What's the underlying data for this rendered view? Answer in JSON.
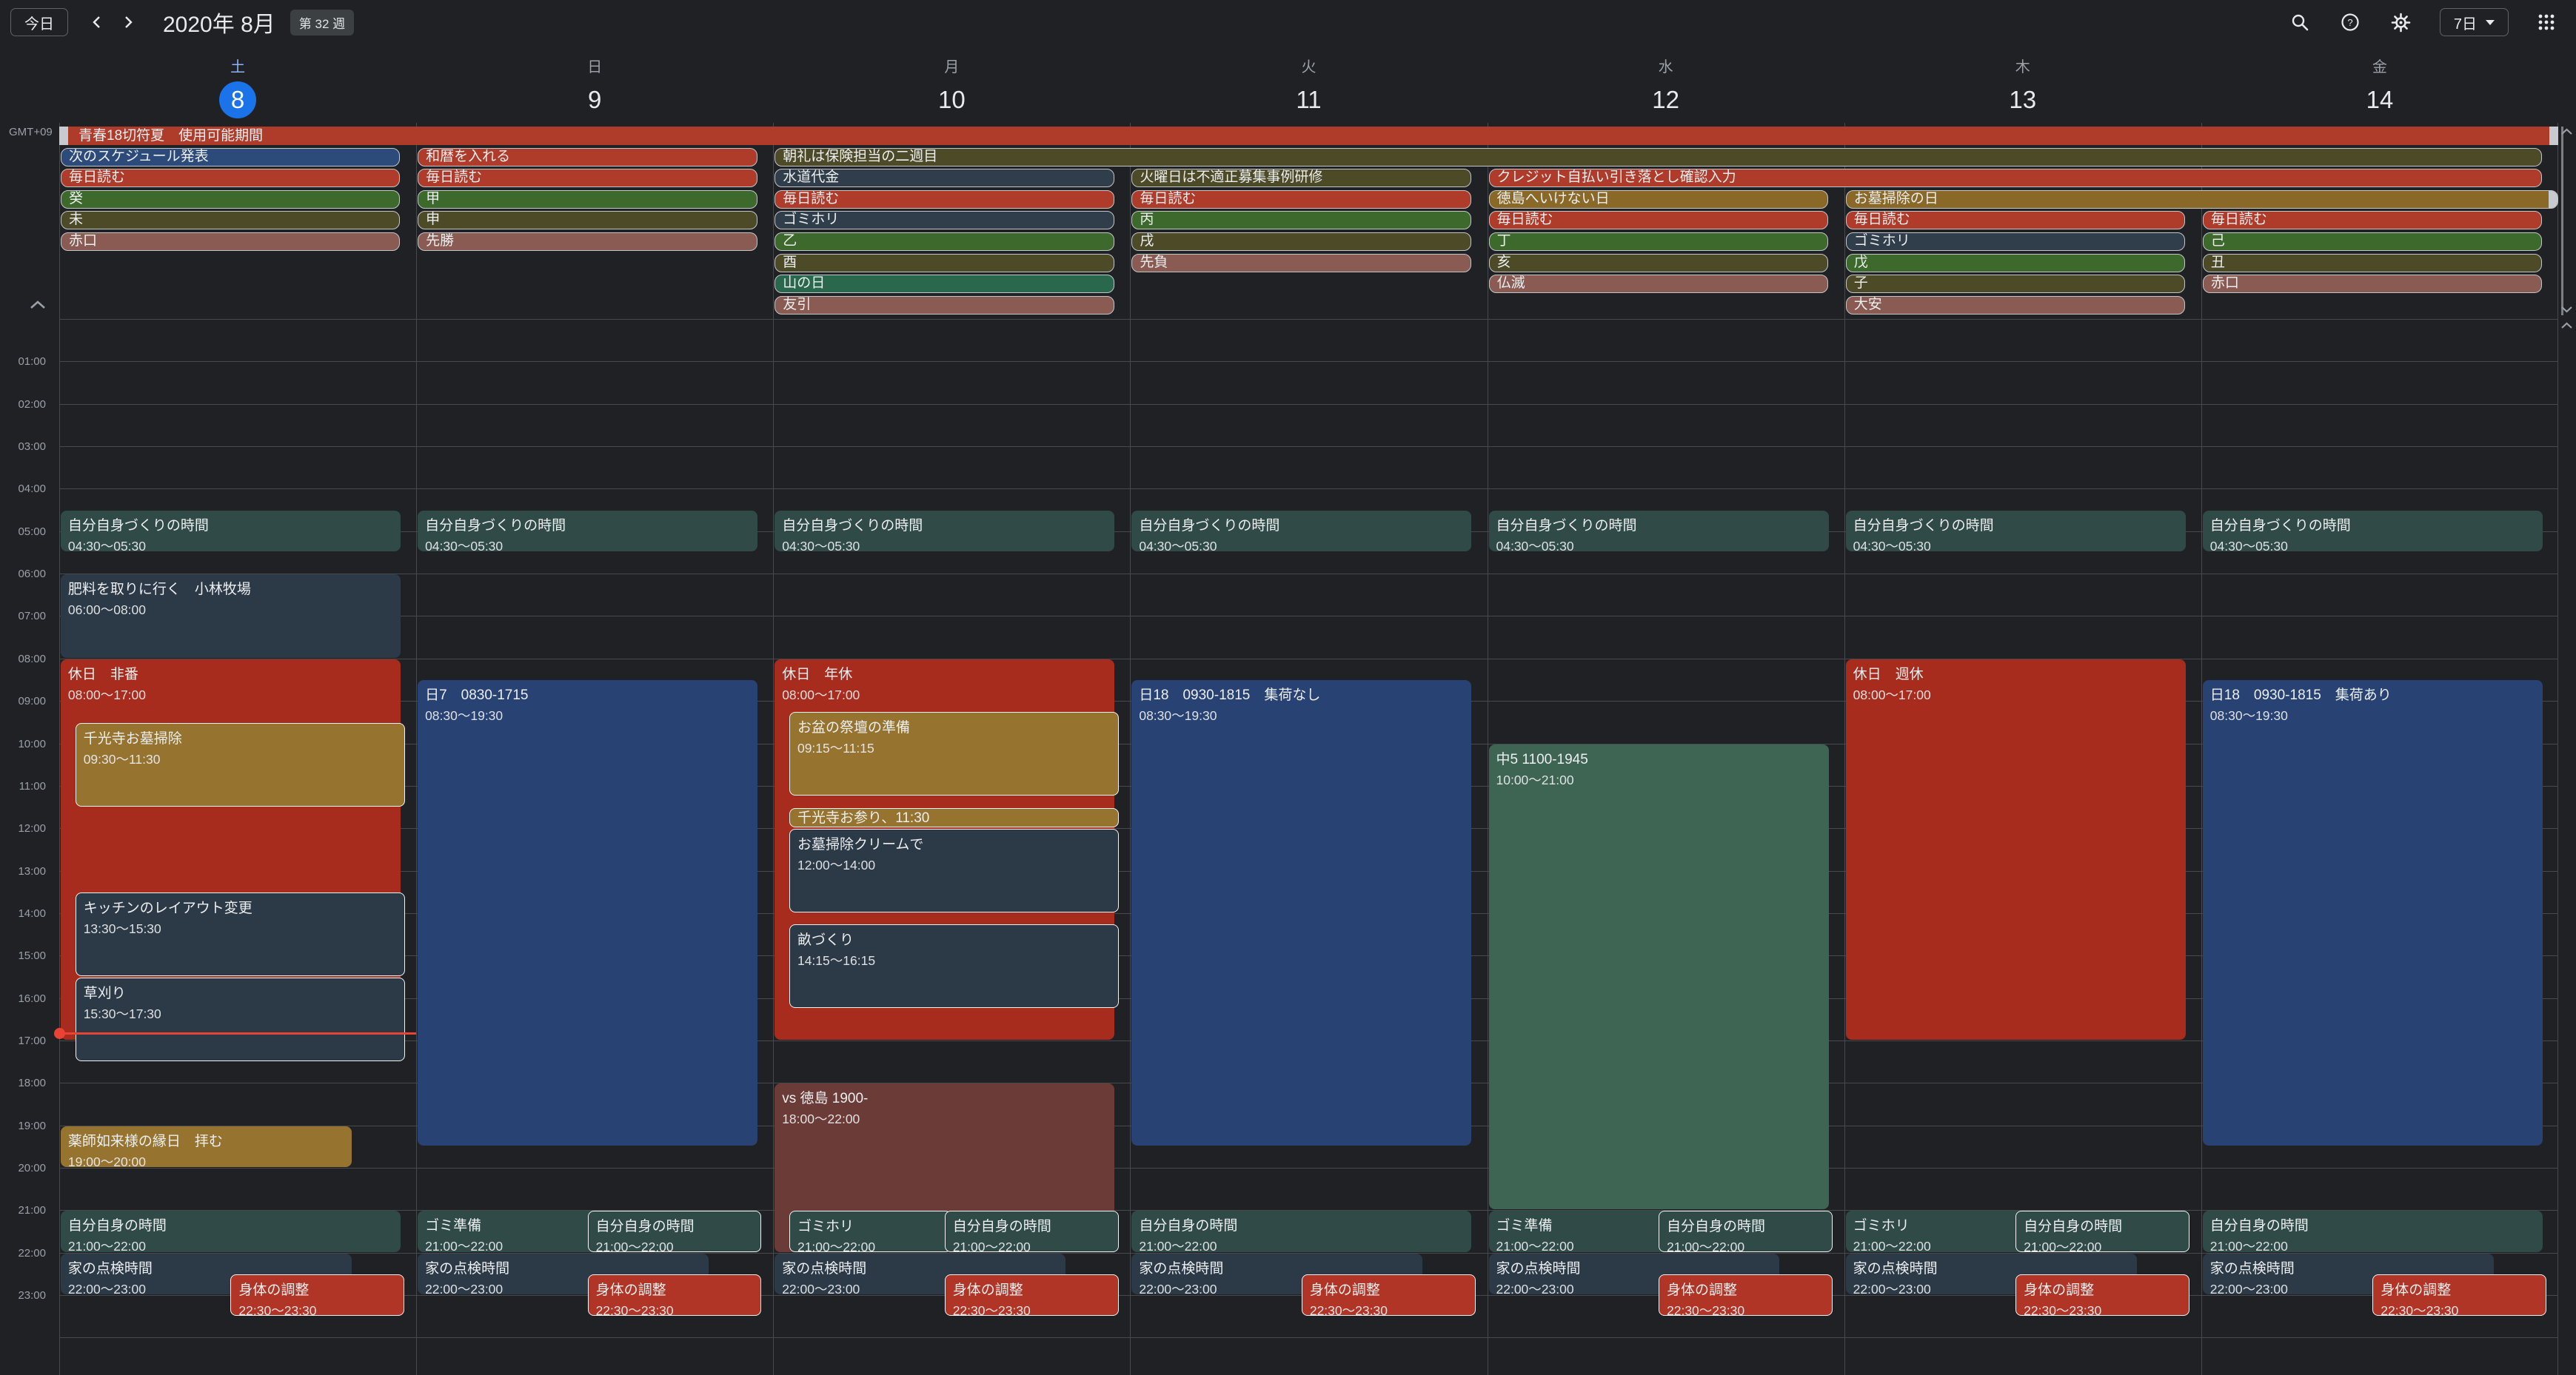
{
  "header": {
    "today_button": "今日",
    "title": "2020年 8月",
    "week_badge": "第 32 週",
    "view_selector": "7日"
  },
  "timezone_label": "GMT+09",
  "days": [
    {
      "weekday": "土",
      "date": "8",
      "today": true
    },
    {
      "weekday": "日",
      "date": "9",
      "today": false
    },
    {
      "weekday": "月",
      "date": "10",
      "today": false
    },
    {
      "weekday": "火",
      "date": "11",
      "today": false
    },
    {
      "weekday": "水",
      "date": "12",
      "today": false
    },
    {
      "weekday": "木",
      "date": "13",
      "today": false
    },
    {
      "weekday": "金",
      "date": "14",
      "today": false
    }
  ],
  "hours": [
    "01:00",
    "02:00",
    "03:00",
    "04:00",
    "05:00",
    "06:00",
    "07:00",
    "08:00",
    "09:00",
    "10:00",
    "11:00",
    "12:00",
    "13:00",
    "14:00",
    "15:00",
    "16:00",
    "17:00",
    "18:00",
    "19:00",
    "20:00",
    "21:00",
    "22:00",
    "23:00"
  ],
  "palette": {
    "red_chip": "#af3b2b",
    "red_block": "#a82c1e",
    "red_small": "#b03526",
    "blue_chip": "#2d4b7a",
    "blue_block": "#284274",
    "green_chip": "#3d692c",
    "sage_chip": "#2a684d",
    "sage_block": "#3e6553",
    "olive": "#4d4a28",
    "gold": "#96742f",
    "gold_dark": "#8a6928",
    "brown": "#8a5b52",
    "maroon": "#6b3b38",
    "slate": "#2c3a48",
    "slate_chip": "#2f3e4a",
    "teal": "#2f4a47",
    "accent": "#1a73e8",
    "now": "#ea4335"
  },
  "all_day": [
    {
      "row": 0,
      "day": 0,
      "span": 7,
      "label": "青春18切符夏　使用可能期間",
      "color": "red_chip",
      "cap_left": true,
      "cap_right": true,
      "flush": true
    },
    {
      "row": 1,
      "day": 0,
      "span": 1,
      "label": "次のスケジュール発表",
      "color": "blue_chip"
    },
    {
      "row": 1,
      "day": 1,
      "span": 1,
      "label": "和暦を入れる",
      "color": "red_chip"
    },
    {
      "row": 1,
      "day": 2,
      "span": 5,
      "label": "朝礼は保険担当の二週目",
      "color": "olive"
    },
    {
      "row": 2,
      "day": 0,
      "span": 1,
      "label": "毎日読む",
      "color": "red_chip"
    },
    {
      "row": 2,
      "day": 1,
      "span": 1,
      "label": "毎日読む",
      "color": "red_chip"
    },
    {
      "row": 2,
      "day": 2,
      "span": 1,
      "label": "水道代金",
      "color": "slate_chip"
    },
    {
      "row": 2,
      "day": 3,
      "span": 1,
      "label": "火曜日は不適正募集事例研修",
      "color": "olive"
    },
    {
      "row": 2,
      "day": 4,
      "span": 3,
      "label": "クレジット自払い引き落とし確認入力",
      "color": "red_chip"
    },
    {
      "row": 3,
      "day": 0,
      "span": 1,
      "label": "癸",
      "color": "green_chip"
    },
    {
      "row": 3,
      "day": 1,
      "span": 1,
      "label": "甲",
      "color": "green_chip"
    },
    {
      "row": 3,
      "day": 2,
      "span": 1,
      "label": "毎日読む",
      "color": "red_chip"
    },
    {
      "row": 3,
      "day": 3,
      "span": 1,
      "label": "毎日読む",
      "color": "red_chip"
    },
    {
      "row": 3,
      "day": 4,
      "span": 1,
      "label": "徳島へいけない日",
      "color": "gold_dark"
    },
    {
      "row": 3,
      "day": 5,
      "span": 2,
      "label": "お墓掃除の日",
      "color": "gold_dark",
      "cap_right": true
    },
    {
      "row": 4,
      "day": 0,
      "span": 1,
      "label": "未",
      "color": "olive"
    },
    {
      "row": 4,
      "day": 1,
      "span": 1,
      "label": "申",
      "color": "olive"
    },
    {
      "row": 4,
      "day": 2,
      "span": 1,
      "label": "ゴミホリ",
      "color": "slate_chip"
    },
    {
      "row": 4,
      "day": 3,
      "span": 1,
      "label": "丙",
      "color": "green_chip"
    },
    {
      "row": 4,
      "day": 4,
      "span": 1,
      "label": "毎日読む",
      "color": "red_chip"
    },
    {
      "row": 4,
      "day": 5,
      "span": 1,
      "label": "毎日読む",
      "color": "red_chip"
    },
    {
      "row": 4,
      "day": 6,
      "span": 1,
      "label": "毎日読む",
      "color": "red_chip"
    },
    {
      "row": 5,
      "day": 0,
      "span": 1,
      "label": "赤口",
      "color": "brown"
    },
    {
      "row": 5,
      "day": 1,
      "span": 1,
      "label": "先勝",
      "color": "brown"
    },
    {
      "row": 5,
      "day": 2,
      "span": 1,
      "label": "乙",
      "color": "green_chip"
    },
    {
      "row": 5,
      "day": 3,
      "span": 1,
      "label": "戌",
      "color": "olive"
    },
    {
      "row": 5,
      "day": 4,
      "span": 1,
      "label": "丁",
      "color": "green_chip"
    },
    {
      "row": 5,
      "day": 5,
      "span": 1,
      "label": "ゴミホリ",
      "color": "slate_chip"
    },
    {
      "row": 5,
      "day": 6,
      "span": 1,
      "label": "己",
      "color": "green_chip"
    },
    {
      "row": 6,
      "day": 2,
      "span": 1,
      "label": "酉",
      "color": "olive"
    },
    {
      "row": 6,
      "day": 3,
      "span": 1,
      "label": "先負",
      "color": "brown"
    },
    {
      "row": 6,
      "day": 4,
      "span": 1,
      "label": "亥",
      "color": "olive"
    },
    {
      "row": 6,
      "day": 5,
      "span": 1,
      "label": "戊",
      "color": "green_chip"
    },
    {
      "row": 6,
      "day": 6,
      "span": 1,
      "label": "丑",
      "color": "olive"
    },
    {
      "row": 7,
      "day": 2,
      "span": 1,
      "label": "山の日",
      "color": "sage_chip"
    },
    {
      "row": 7,
      "day": 4,
      "span": 1,
      "label": "仏滅",
      "color": "brown"
    },
    {
      "row": 7,
      "day": 5,
      "span": 1,
      "label": "子",
      "color": "olive"
    },
    {
      "row": 7,
      "day": 6,
      "span": 1,
      "label": "赤口",
      "color": "brown"
    },
    {
      "row": 8,
      "day": 2,
      "span": 1,
      "label": "友引",
      "color": "brown"
    },
    {
      "row": 8,
      "day": 5,
      "span": 1,
      "label": "大安",
      "color": "brown"
    }
  ],
  "events": [
    {
      "day": 0,
      "start": "04:30",
      "end": "05:30",
      "title": "自分自身づくりの時間",
      "time": "04:30～05:30",
      "color": "teal",
      "lane": "full"
    },
    {
      "day": 0,
      "start": "06:00",
      "end": "08:00",
      "title": "肥料を取りに行く　小林牧場",
      "time": "06:00～08:00",
      "color": "slate",
      "lane": "full"
    },
    {
      "day": 0,
      "start": "08:00",
      "end": "17:00",
      "title": "休日　非番",
      "time": "08:00～17:00",
      "color": "red_block",
      "lane": "full"
    },
    {
      "day": 0,
      "start": "09:30",
      "end": "11:30",
      "title": "千光寺お墓掃除",
      "time": "09:30～11:30",
      "color": "gold",
      "lane": "inset",
      "bordered": true
    },
    {
      "day": 0,
      "start": "13:30",
      "end": "15:30",
      "title": "キッチンのレイアウト変更",
      "time": "13:30～15:30",
      "color": "slate",
      "lane": "inset",
      "bordered": true
    },
    {
      "day": 0,
      "start": "15:30",
      "end": "17:30",
      "title": "草刈り",
      "time": "15:30～17:30",
      "color": "slate",
      "lane": "inset",
      "bordered": true
    },
    {
      "day": 0,
      "start": "19:00",
      "end": "20:00",
      "title": "薬師如来様の縁日　拝む",
      "time": "19:00～20:00",
      "color": "gold",
      "lane": "wide"
    },
    {
      "day": 0,
      "start": "21:00",
      "end": "22:00",
      "title": "自分自身の時間",
      "time": "21:00～22:00",
      "color": "teal",
      "lane": "full"
    },
    {
      "day": 0,
      "start": "22:00",
      "end": "23:00",
      "title": "家の点検時間",
      "time": "22:00～23:00",
      "color": "slate",
      "lane": "wide"
    },
    {
      "day": 0,
      "start": "22:30",
      "end": "23:30",
      "title": "身体の調整",
      "time": "22:30～23:30",
      "color": "red_small",
      "lane": "right",
      "bordered": true
    },
    {
      "day": 1,
      "start": "04:30",
      "end": "05:30",
      "title": "自分自身づくりの時間",
      "time": "04:30～05:30",
      "color": "teal",
      "lane": "full"
    },
    {
      "day": 1,
      "start": "08:30",
      "end": "19:30",
      "title": "日7　0830-1715",
      "time": "08:30～19:30",
      "color": "blue_block",
      "lane": "full"
    },
    {
      "day": 1,
      "start": "21:00",
      "end": "22:00",
      "title": "ゴミ準備",
      "time": "21:00～22:00",
      "color": "teal",
      "lane": "wide"
    },
    {
      "day": 1,
      "start": "21:00",
      "end": "22:00",
      "title": "自分自身の時間",
      "time": "21:00～22:00",
      "color": "teal",
      "lane": "right",
      "bordered": true
    },
    {
      "day": 1,
      "start": "22:00",
      "end": "23:00",
      "title": "家の点検時間",
      "time": "22:00～23:00",
      "color": "slate",
      "lane": "wide"
    },
    {
      "day": 1,
      "start": "22:30",
      "end": "23:30",
      "title": "身体の調整",
      "time": "22:30～23:30",
      "color": "red_small",
      "lane": "right",
      "bordered": true
    },
    {
      "day": 2,
      "start": "04:30",
      "end": "05:30",
      "title": "自分自身づくりの時間",
      "time": "04:30～05:30",
      "color": "teal",
      "lane": "full"
    },
    {
      "day": 2,
      "start": "08:00",
      "end": "17:00",
      "title": "休日　年休",
      "time": "08:00～17:00",
      "color": "red_block",
      "lane": "full"
    },
    {
      "day": 2,
      "start": "09:15",
      "end": "11:15",
      "title": "お盆の祭壇の準備",
      "time": "09:15～11:15",
      "color": "gold",
      "lane": "inset",
      "bordered": true
    },
    {
      "day": 2,
      "start": "11:30",
      "end": "12:00",
      "title": "千光寺お参り、11:30",
      "time": "",
      "color": "gold",
      "lane": "inset",
      "bordered": true
    },
    {
      "day": 2,
      "start": "12:00",
      "end": "14:00",
      "title": "お墓掃除クリームで",
      "time": "12:00～14:00",
      "color": "slate",
      "lane": "inset",
      "bordered": true
    },
    {
      "day": 2,
      "start": "14:15",
      "end": "16:15",
      "title": "畝づくり",
      "time": "14:15～16:15",
      "color": "slate",
      "lane": "inset",
      "bordered": true
    },
    {
      "day": 2,
      "start": "18:00",
      "end": "22:00",
      "title": "vs 徳島 1900-",
      "time": "18:00～22:00",
      "color": "maroon",
      "lane": "full"
    },
    {
      "day": 2,
      "start": "21:00",
      "end": "22:00",
      "title": "ゴミホリ",
      "time": "21:00～22:00",
      "color": "teal",
      "lane": "left",
      "bordered": true
    },
    {
      "day": 2,
      "start": "21:00",
      "end": "22:00",
      "title": "自分自身の時間",
      "time": "21:00～22:00",
      "color": "teal",
      "lane": "right",
      "bordered": true
    },
    {
      "day": 2,
      "start": "22:00",
      "end": "23:00",
      "title": "家の点検時間",
      "time": "22:00～23:00",
      "color": "slate",
      "lane": "wide"
    },
    {
      "day": 2,
      "start": "22:30",
      "end": "23:30",
      "title": "身体の調整",
      "time": "22:30～23:30",
      "color": "red_small",
      "lane": "right",
      "bordered": true
    },
    {
      "day": 3,
      "start": "04:30",
      "end": "05:30",
      "title": "自分自身づくりの時間",
      "time": "04:30～05:30",
      "color": "teal",
      "lane": "full"
    },
    {
      "day": 3,
      "start": "08:30",
      "end": "19:30",
      "title": "日18　0930-1815　集荷なし",
      "time": "08:30～19:30",
      "color": "blue_block",
      "lane": "full"
    },
    {
      "day": 3,
      "start": "21:00",
      "end": "22:00",
      "title": "自分自身の時間",
      "time": "21:00～22:00",
      "color": "teal",
      "lane": "full"
    },
    {
      "day": 3,
      "start": "22:00",
      "end": "23:00",
      "title": "家の点検時間",
      "time": "22:00～23:00",
      "color": "slate",
      "lane": "wide"
    },
    {
      "day": 3,
      "start": "22:30",
      "end": "23:30",
      "title": "身体の調整",
      "time": "22:30～23:30",
      "color": "red_small",
      "lane": "right",
      "bordered": true
    },
    {
      "day": 4,
      "start": "04:30",
      "end": "05:30",
      "title": "自分自身づくりの時間",
      "time": "04:30～05:30",
      "color": "teal",
      "lane": "full"
    },
    {
      "day": 4,
      "start": "10:00",
      "end": "21:00",
      "title": "中5 1100-1945",
      "time": "10:00～21:00",
      "color": "sage_block",
      "lane": "full"
    },
    {
      "day": 4,
      "start": "21:00",
      "end": "22:00",
      "title": "ゴミ準備",
      "time": "21:00～22:00",
      "color": "teal",
      "lane": "wide"
    },
    {
      "day": 4,
      "start": "21:00",
      "end": "22:00",
      "title": "自分自身の時間",
      "time": "21:00～22:00",
      "color": "teal",
      "lane": "right",
      "bordered": true
    },
    {
      "day": 4,
      "start": "22:00",
      "end": "23:00",
      "title": "家の点検時間",
      "time": "22:00～23:00",
      "color": "slate",
      "lane": "wide"
    },
    {
      "day": 4,
      "start": "22:30",
      "end": "23:30",
      "title": "身体の調整",
      "time": "22:30～23:30",
      "color": "red_small",
      "lane": "right",
      "bordered": true
    },
    {
      "day": 5,
      "start": "04:30",
      "end": "05:30",
      "title": "自分自身づくりの時間",
      "time": "04:30～05:30",
      "color": "teal",
      "lane": "full"
    },
    {
      "day": 5,
      "start": "08:00",
      "end": "17:00",
      "title": "休日　週休",
      "time": "08:00～17:00",
      "color": "red_block",
      "lane": "full"
    },
    {
      "day": 5,
      "start": "21:00",
      "end": "22:00",
      "title": "ゴミホリ",
      "time": "21:00～22:00",
      "color": "teal",
      "lane": "wide"
    },
    {
      "day": 5,
      "start": "21:00",
      "end": "22:00",
      "title": "自分自身の時間",
      "time": "21:00～22:00",
      "color": "teal",
      "lane": "right",
      "bordered": true
    },
    {
      "day": 5,
      "start": "22:00",
      "end": "23:00",
      "title": "家の点検時間",
      "time": "22:00～23:00",
      "color": "slate",
      "lane": "wide"
    },
    {
      "day": 5,
      "start": "22:30",
      "end": "23:30",
      "title": "身体の調整",
      "time": "22:30～23:30",
      "color": "red_small",
      "lane": "right",
      "bordered": true
    },
    {
      "day": 6,
      "start": "04:30",
      "end": "05:30",
      "title": "自分自身づくりの時間",
      "time": "04:30～05:30",
      "color": "teal",
      "lane": "full"
    },
    {
      "day": 6,
      "start": "08:30",
      "end": "19:30",
      "title": "日18　0930-1815　集荷あり",
      "time": "08:30～19:30",
      "color": "blue_block",
      "lane": "full"
    },
    {
      "day": 6,
      "start": "21:00",
      "end": "22:00",
      "title": "自分自身の時間",
      "time": "21:00～22:00",
      "color": "teal",
      "lane": "full"
    },
    {
      "day": 6,
      "start": "22:00",
      "end": "23:00",
      "title": "家の点検時間",
      "time": "22:00～23:00",
      "color": "slate",
      "lane": "wide"
    },
    {
      "day": 6,
      "start": "22:30",
      "end": "23:30",
      "title": "身体の調整",
      "time": "22:30～23:30",
      "color": "red_small",
      "lane": "right",
      "bordered": true
    }
  ],
  "now": {
    "day": 0,
    "time": "16:50"
  }
}
